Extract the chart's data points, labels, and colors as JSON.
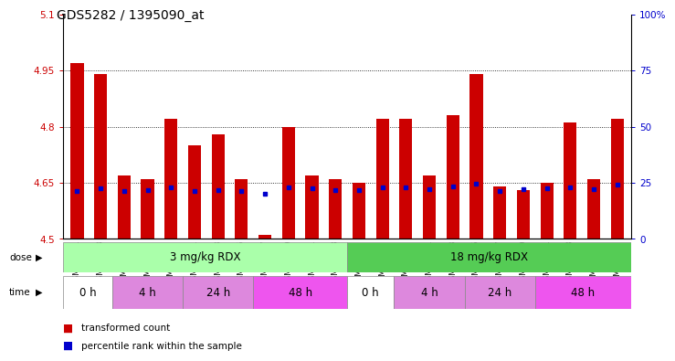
{
  "title": "GDS5282 / 1395090_at",
  "samples": [
    "GSM306951",
    "GSM306953",
    "GSM306955",
    "GSM306957",
    "GSM306959",
    "GSM306961",
    "GSM306963",
    "GSM306965",
    "GSM306967",
    "GSM306969",
    "GSM306971",
    "GSM306973",
    "GSM306975",
    "GSM306977",
    "GSM306979",
    "GSM306981",
    "GSM306983",
    "GSM306985",
    "GSM306987",
    "GSM306989",
    "GSM306991",
    "GSM306993",
    "GSM306995",
    "GSM306997"
  ],
  "bar_values": [
    4.97,
    4.94,
    4.67,
    4.66,
    4.82,
    4.75,
    4.78,
    4.66,
    4.51,
    4.8,
    4.67,
    4.66,
    4.65,
    4.82,
    4.82,
    4.67,
    4.83,
    4.94,
    4.64,
    4.63,
    4.65,
    4.81,
    4.66,
    4.82
  ],
  "blue_dot_values": [
    4.627,
    4.635,
    4.627,
    4.63,
    4.638,
    4.628,
    4.63,
    4.628,
    4.62,
    4.638,
    4.635,
    4.63,
    4.63,
    4.638,
    4.638,
    4.632,
    4.64,
    4.648,
    4.628,
    4.632,
    4.635,
    4.638,
    4.632,
    4.645
  ],
  "ylim": [
    4.5,
    5.1
  ],
  "yticks": [
    4.5,
    4.65,
    4.8,
    4.95,
    5.1
  ],
  "ytick_labels": [
    "4.5",
    "4.65",
    "4.8",
    "4.95",
    "5.1"
  ],
  "grid_values": [
    4.65,
    4.8,
    4.95
  ],
  "right_yticks": [
    0,
    25,
    50,
    75,
    100
  ],
  "right_ytick_labels": [
    "0",
    "25",
    "50",
    "75",
    "100%"
  ],
  "bar_color": "#cc0000",
  "blue_dot_color": "#0000cc",
  "background_color": "#ffffff",
  "plot_bg_color": "#ffffff",
  "dose_groups": [
    {
      "label": "3 mg/kg RDX",
      "start": 0,
      "end": 11,
      "color": "#aaffaa"
    },
    {
      "label": "18 mg/kg RDX",
      "start": 12,
      "end": 23,
      "color": "#55cc55"
    }
  ],
  "time_colors": [
    "#ffffff",
    "#dd88dd",
    "#dd88dd",
    "#ee55ee",
    "#ffffff",
    "#dd88dd",
    "#dd88dd",
    "#ee55ee"
  ],
  "time_groups": [
    {
      "label": "0 h",
      "start": 0,
      "end": 1
    },
    {
      "label": "4 h",
      "start": 2,
      "end": 4
    },
    {
      "label": "24 h",
      "start": 5,
      "end": 7
    },
    {
      "label": "48 h",
      "start": 8,
      "end": 11
    },
    {
      "label": "0 h",
      "start": 12,
      "end": 13
    },
    {
      "label": "4 h",
      "start": 14,
      "end": 16
    },
    {
      "label": "24 h",
      "start": 17,
      "end": 19
    },
    {
      "label": "48 h",
      "start": 20,
      "end": 23
    }
  ],
  "legend_items": [
    {
      "label": "transformed count",
      "color": "#cc0000"
    },
    {
      "label": "percentile rank within the sample",
      "color": "#0000cc"
    }
  ],
  "title_fontsize": 10,
  "axis_label_color_left": "#cc0000",
  "axis_label_color_right": "#0000cc",
  "bar_width": 0.55
}
